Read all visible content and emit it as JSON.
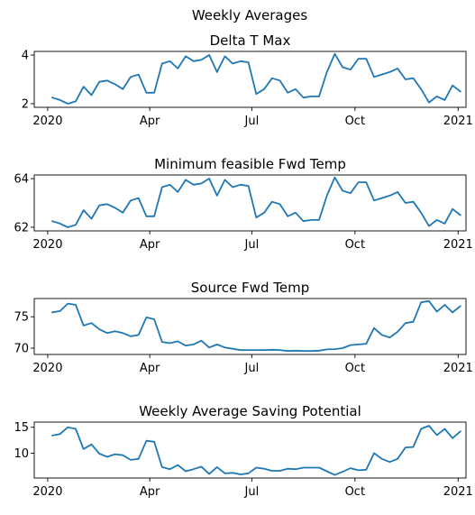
{
  "figure": {
    "suptitle": "Weekly Averages",
    "line_color": "#1f77b4"
  },
  "chart_data": [
    {
      "type": "line",
      "title": "Delta T Max",
      "xlabel": "",
      "ylabel": "",
      "x_ticks": [
        "2020",
        "Apr",
        "Jul",
        "Oct",
        "2021"
      ],
      "x_tick_dates": [
        "2020-01-01",
        "2020-04-01",
        "2020-07-01",
        "2020-10-01",
        "2021-01-01"
      ],
      "xlim": [
        "2019-12-20",
        "2021-01-08"
      ],
      "ylim": [
        1.85,
        4.15
      ],
      "y_ticks": [
        2,
        4
      ],
      "grid": false,
      "x": [
        "2020-01-05",
        "2020-01-12",
        "2020-01-19",
        "2020-01-26",
        "2020-02-02",
        "2020-02-09",
        "2020-02-16",
        "2020-02-23",
        "2020-03-01",
        "2020-03-08",
        "2020-03-15",
        "2020-03-22",
        "2020-03-29",
        "2020-04-05",
        "2020-04-12",
        "2020-04-19",
        "2020-04-26",
        "2020-05-03",
        "2020-05-10",
        "2020-05-17",
        "2020-05-24",
        "2020-05-31",
        "2020-06-07",
        "2020-06-14",
        "2020-06-21",
        "2020-06-28",
        "2020-07-05",
        "2020-07-12",
        "2020-07-19",
        "2020-07-26",
        "2020-08-02",
        "2020-08-09",
        "2020-08-16",
        "2020-08-23",
        "2020-08-30",
        "2020-09-06",
        "2020-09-13",
        "2020-09-20",
        "2020-09-27",
        "2020-10-04",
        "2020-10-11",
        "2020-10-18",
        "2020-10-25",
        "2020-11-01",
        "2020-11-08",
        "2020-11-15",
        "2020-11-22",
        "2020-11-29",
        "2020-12-06",
        "2020-12-13",
        "2020-12-20",
        "2020-12-27",
        "2021-01-03"
      ],
      "series": [
        {
          "values": [
            2.25,
            2.15,
            2.0,
            2.1,
            2.7,
            2.35,
            2.9,
            2.95,
            2.8,
            2.6,
            3.1,
            3.2,
            2.45,
            2.45,
            3.65,
            3.75,
            3.45,
            3.95,
            3.75,
            3.8,
            4.0,
            3.3,
            3.95,
            3.65,
            3.75,
            3.7,
            2.4,
            2.6,
            3.05,
            2.95,
            2.45,
            2.6,
            2.25,
            2.3,
            2.3,
            3.3,
            4.05,
            3.5,
            3.4,
            3.85,
            3.85,
            3.1,
            3.2,
            3.3,
            3.45,
            3.0,
            3.05,
            2.6,
            2.05,
            2.3,
            2.15,
            2.75,
            2.5
          ]
        }
      ]
    },
    {
      "type": "line",
      "title": "Minimum feasible Fwd Temp",
      "xlabel": "",
      "ylabel": "",
      "x_ticks": [
        "2020",
        "Apr",
        "Jul",
        "Oct",
        "2021"
      ],
      "x_tick_dates": [
        "2020-01-01",
        "2020-04-01",
        "2020-07-01",
        "2020-10-01",
        "2021-01-01"
      ],
      "xlim": [
        "2019-12-20",
        "2021-01-08"
      ],
      "ylim": [
        61.85,
        64.15
      ],
      "y_ticks": [
        62,
        64
      ],
      "grid": false,
      "x": [
        "2020-01-05",
        "2020-01-12",
        "2020-01-19",
        "2020-01-26",
        "2020-02-02",
        "2020-02-09",
        "2020-02-16",
        "2020-02-23",
        "2020-03-01",
        "2020-03-08",
        "2020-03-15",
        "2020-03-22",
        "2020-03-29",
        "2020-04-05",
        "2020-04-12",
        "2020-04-19",
        "2020-04-26",
        "2020-05-03",
        "2020-05-10",
        "2020-05-17",
        "2020-05-24",
        "2020-05-31",
        "2020-06-07",
        "2020-06-14",
        "2020-06-21",
        "2020-06-28",
        "2020-07-05",
        "2020-07-12",
        "2020-07-19",
        "2020-07-26",
        "2020-08-02",
        "2020-08-09",
        "2020-08-16",
        "2020-08-23",
        "2020-08-30",
        "2020-09-06",
        "2020-09-13",
        "2020-09-20",
        "2020-09-27",
        "2020-10-04",
        "2020-10-11",
        "2020-10-18",
        "2020-10-25",
        "2020-11-01",
        "2020-11-08",
        "2020-11-15",
        "2020-11-22",
        "2020-11-29",
        "2020-12-06",
        "2020-12-13",
        "2020-12-20",
        "2020-12-27",
        "2021-01-03"
      ],
      "series": [
        {
          "values": [
            62.25,
            62.15,
            62.0,
            62.1,
            62.7,
            62.35,
            62.9,
            62.95,
            62.8,
            62.6,
            63.1,
            63.2,
            62.45,
            62.45,
            63.65,
            63.75,
            63.45,
            63.95,
            63.75,
            63.8,
            64.0,
            63.3,
            63.95,
            63.65,
            63.75,
            63.7,
            62.4,
            62.6,
            63.05,
            62.95,
            62.45,
            62.6,
            62.25,
            62.3,
            62.3,
            63.3,
            64.05,
            63.5,
            63.4,
            63.85,
            63.85,
            63.1,
            63.2,
            63.3,
            63.45,
            63.0,
            63.05,
            62.6,
            62.05,
            62.3,
            62.15,
            62.75,
            62.5
          ]
        }
      ]
    },
    {
      "type": "line",
      "title": "Source Fwd Temp",
      "xlabel": "",
      "ylabel": "",
      "x_ticks": [
        "2020",
        "Apr",
        "Jul",
        "Oct",
        "2021"
      ],
      "x_tick_dates": [
        "2020-01-01",
        "2020-04-01",
        "2020-07-01",
        "2020-10-01",
        "2021-01-01"
      ],
      "xlim": [
        "2019-12-20",
        "2021-01-08"
      ],
      "ylim": [
        69.0,
        77.9
      ],
      "y_ticks": [
        70,
        75
      ],
      "grid": false,
      "x": [
        "2020-01-05",
        "2020-01-12",
        "2020-01-19",
        "2020-01-26",
        "2020-02-02",
        "2020-02-09",
        "2020-02-16",
        "2020-02-23",
        "2020-03-01",
        "2020-03-08",
        "2020-03-15",
        "2020-03-22",
        "2020-03-29",
        "2020-04-05",
        "2020-04-12",
        "2020-04-19",
        "2020-04-26",
        "2020-05-03",
        "2020-05-10",
        "2020-05-17",
        "2020-05-24",
        "2020-05-31",
        "2020-06-07",
        "2020-06-14",
        "2020-06-21",
        "2020-06-28",
        "2020-07-05",
        "2020-07-12",
        "2020-07-19",
        "2020-07-26",
        "2020-08-02",
        "2020-08-09",
        "2020-08-16",
        "2020-08-23",
        "2020-08-30",
        "2020-09-06",
        "2020-09-13",
        "2020-09-20",
        "2020-09-27",
        "2020-10-04",
        "2020-10-11",
        "2020-10-18",
        "2020-10-25",
        "2020-11-01",
        "2020-11-08",
        "2020-11-15",
        "2020-11-22",
        "2020-11-29",
        "2020-12-06",
        "2020-12-13",
        "2020-12-20",
        "2020-12-27",
        "2021-01-03"
      ],
      "series": [
        {
          "values": [
            75.7,
            75.9,
            77.1,
            76.9,
            73.6,
            74.0,
            73.0,
            72.4,
            72.7,
            72.4,
            71.9,
            72.1,
            74.9,
            74.6,
            71.0,
            70.8,
            71.1,
            70.4,
            70.6,
            71.2,
            70.1,
            70.6,
            70.1,
            69.9,
            69.7,
            69.7,
            69.7,
            69.7,
            69.75,
            69.7,
            69.55,
            69.6,
            69.55,
            69.55,
            69.6,
            69.8,
            69.85,
            70.0,
            70.5,
            70.6,
            70.7,
            73.2,
            72.1,
            71.7,
            72.6,
            74.0,
            74.2,
            77.3,
            77.5,
            75.8,
            76.9,
            75.7,
            76.7
          ]
        }
      ]
    },
    {
      "type": "line",
      "title": "Weekly Average Saving Potential",
      "xlabel": "",
      "ylabel": "",
      "x_ticks": [
        "2020",
        "Apr",
        "Jul",
        "Oct",
        "2021"
      ],
      "x_tick_dates": [
        "2020-01-01",
        "2020-04-01",
        "2020-07-01",
        "2020-10-01",
        "2021-01-01"
      ],
      "xlim": [
        "2019-12-20",
        "2021-01-08"
      ],
      "ylim": [
        5.2,
        16.0
      ],
      "y_ticks": [
        10,
        15
      ],
      "grid": false,
      "x": [
        "2020-01-05",
        "2020-01-12",
        "2020-01-19",
        "2020-01-26",
        "2020-02-02",
        "2020-02-09",
        "2020-02-16",
        "2020-02-23",
        "2020-03-01",
        "2020-03-08",
        "2020-03-15",
        "2020-03-22",
        "2020-03-29",
        "2020-04-05",
        "2020-04-12",
        "2020-04-19",
        "2020-04-26",
        "2020-05-03",
        "2020-05-10",
        "2020-05-17",
        "2020-05-24",
        "2020-05-31",
        "2020-06-07",
        "2020-06-14",
        "2020-06-21",
        "2020-06-28",
        "2020-07-05",
        "2020-07-12",
        "2020-07-19",
        "2020-07-26",
        "2020-08-02",
        "2020-08-09",
        "2020-08-16",
        "2020-08-23",
        "2020-08-30",
        "2020-09-06",
        "2020-09-13",
        "2020-09-20",
        "2020-09-27",
        "2020-10-04",
        "2020-10-11",
        "2020-10-18",
        "2020-10-25",
        "2020-11-01",
        "2020-11-08",
        "2020-11-15",
        "2020-11-22",
        "2020-11-29",
        "2020-12-06",
        "2020-12-13",
        "2020-12-20",
        "2020-12-27",
        "2021-01-03"
      ],
      "series": [
        {
          "values": [
            13.4,
            13.7,
            15.0,
            14.7,
            10.8,
            11.7,
            9.9,
            9.3,
            9.8,
            9.6,
            8.7,
            8.9,
            12.4,
            12.2,
            7.3,
            6.9,
            7.7,
            6.5,
            6.9,
            7.4,
            6.0,
            7.3,
            6.1,
            6.2,
            5.9,
            6.1,
            7.2,
            7.0,
            6.6,
            6.6,
            7.0,
            6.9,
            7.2,
            7.2,
            7.2,
            6.5,
            5.8,
            6.4,
            7.1,
            6.7,
            6.8,
            10.0,
            8.9,
            8.3,
            8.9,
            11.1,
            11.2,
            14.7,
            15.3,
            13.5,
            14.7,
            12.9,
            14.2
          ]
        }
      ]
    }
  ]
}
